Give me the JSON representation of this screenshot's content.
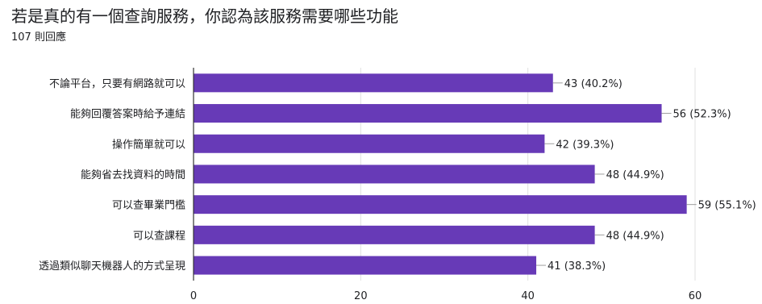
{
  "header": {
    "title": "若是真的有一個查詢服務，你認為該服務需要哪些功能",
    "responses": "107 則回應"
  },
  "chart_data": {
    "type": "bar",
    "orientation": "horizontal",
    "categories": [
      "不論平台，只要有網路就可以",
      "能夠回覆答案時給予連結",
      "操作簡單就可以",
      "能夠省去找資料的時間",
      "可以查畢業門檻",
      "可以查課程",
      "透過類似聊天機器人的方式呈現"
    ],
    "values": [
      43,
      56,
      42,
      48,
      59,
      48,
      41
    ],
    "data_labels": [
      "43 (40.2%)",
      "56 (52.3%)",
      "42 (39.3%)",
      "48 (44.9%)",
      "59 (55.1%)",
      "48 (44.9%)",
      "41 (38.3%)"
    ],
    "xlim": [
      0,
      60
    ],
    "xticks": [
      "0",
      "20",
      "40",
      "60"
    ],
    "grid": true,
    "colors": {
      "bar": "#673ab7",
      "grid": "#e0e0e0",
      "axis": "#333333",
      "text": "#202124",
      "leader": "#9e9e9e"
    }
  }
}
